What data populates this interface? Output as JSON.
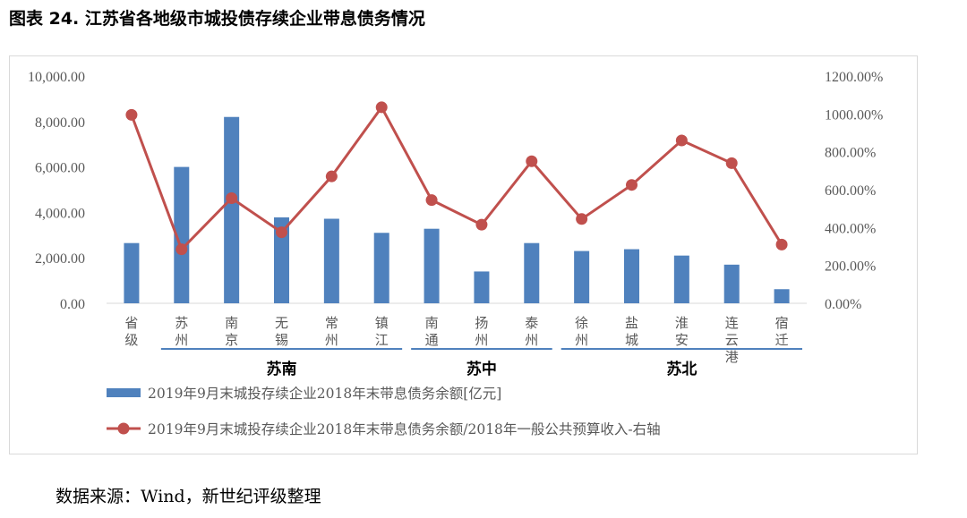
{
  "title": "图表 24. 江苏省各地级市城投债存续企业带息债务情况",
  "source": "数据来源：Wind，新世纪评级整理",
  "chart_data": {
    "type": "bar+line",
    "categories": [
      [
        "省",
        "级"
      ],
      [
        "苏",
        "州"
      ],
      [
        "南",
        "京"
      ],
      [
        "无",
        "锡"
      ],
      [
        "常",
        "州"
      ],
      [
        "镇",
        "江"
      ],
      [
        "南",
        "通"
      ],
      [
        "扬",
        "州"
      ],
      [
        "泰",
        "州"
      ],
      [
        "徐",
        "州"
      ],
      [
        "盐",
        "城"
      ],
      [
        "淮",
        "安"
      ],
      [
        "连",
        "云",
        "港"
      ],
      [
        "宿",
        "迁"
      ]
    ],
    "regions": [
      {
        "label": "苏南",
        "from": 1,
        "to": 5
      },
      {
        "label": "苏中",
        "from": 6,
        "to": 8
      },
      {
        "label": "苏北",
        "from": 9,
        "to": 13
      }
    ],
    "y_left": {
      "min": 0,
      "max": 10000,
      "step": 2000,
      "tick_labels": [
        "0.00",
        "2,000.00",
        "4,000.00",
        "6,000.00",
        "8,000.00",
        "10,000.00"
      ]
    },
    "y_right": {
      "min": 0,
      "max": 1200,
      "step": 200,
      "tick_labels": [
        "0.00%",
        "200.00%",
        "400.00%",
        "600.00%",
        "800.00%",
        "1000.00%",
        "1200.00%"
      ]
    },
    "series": [
      {
        "name": "2019年9月末城投存续企业2018年末带息债务余额[亿元]",
        "type": "bar",
        "axis": "left",
        "color": "#4f81bd",
        "values": [
          2650,
          6000,
          8200,
          3780,
          3720,
          3100,
          3280,
          1400,
          2650,
          2300,
          2380,
          2100,
          1700,
          620
        ]
      },
      {
        "name": "2019年9月末城投存续企业2018年末带息债务余额/2018年一般公共预算收入-右轴",
        "type": "line",
        "axis": "right",
        "color": "#c0504d",
        "values": [
          995,
          285,
          555,
          375,
          670,
          1035,
          545,
          415,
          750,
          445,
          625,
          860,
          740,
          310
        ]
      }
    ],
    "grid": false,
    "legend": "bottom"
  }
}
